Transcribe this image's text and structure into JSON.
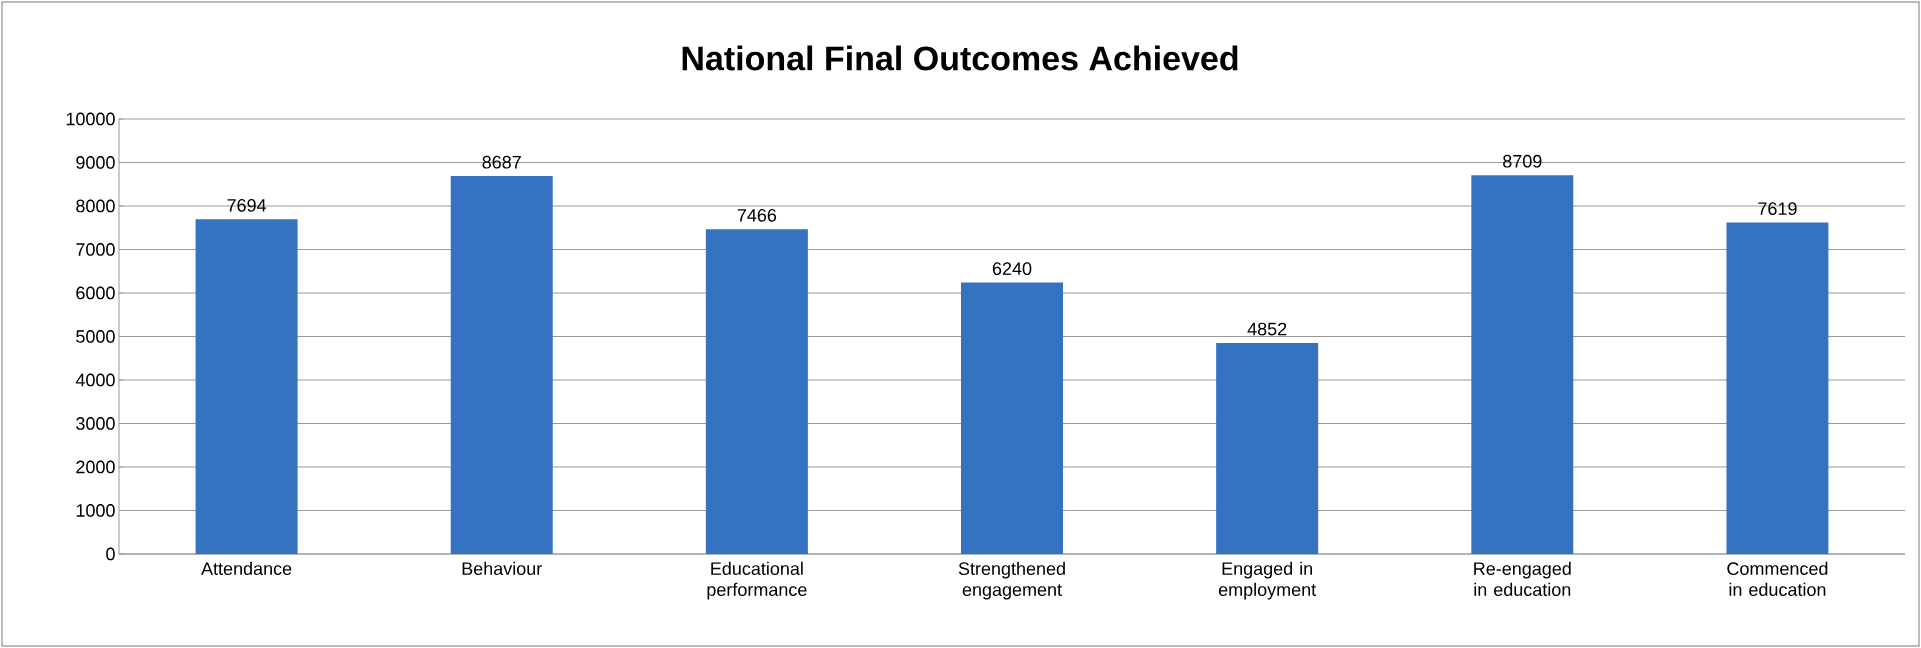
{
  "chart_data": {
    "type": "bar",
    "title": "National Final Outcomes Achieved",
    "categories": [
      "Attendance",
      "Behaviour",
      "Educational performance",
      "Strengthened engagement",
      "Engaged in employment",
      "Re-engaged in education",
      "Commenced in education"
    ],
    "values": [
      7694,
      8687,
      7466,
      6240,
      4852,
      8709,
      7619
    ],
    "color": "#3572c2",
    "ylim": [
      0,
      10000
    ],
    "yticks": [
      0,
      1000,
      2000,
      3000,
      4000,
      5000,
      6000,
      7000,
      8000,
      9000,
      10000
    ],
    "grid": "y",
    "data_labels": true
  }
}
